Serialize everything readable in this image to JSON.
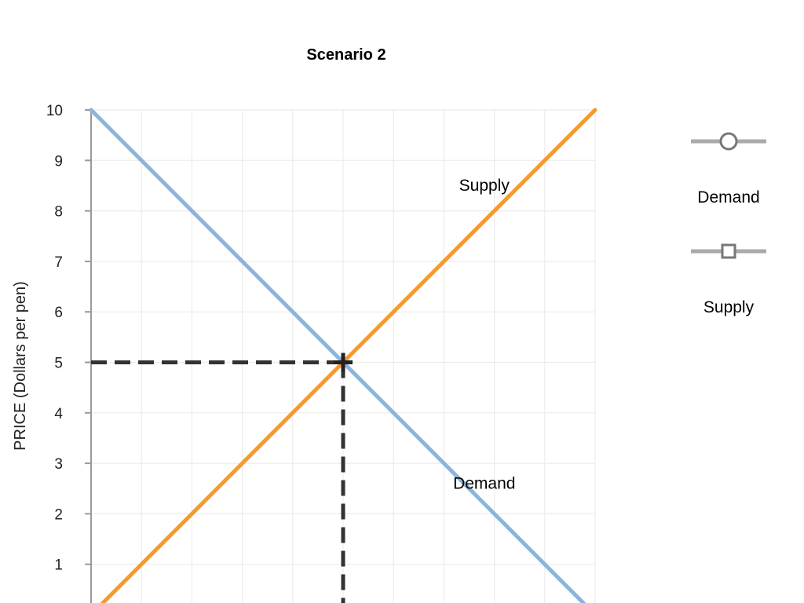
{
  "chart_data": {
    "type": "line",
    "title": "Scenario 2",
    "ylabel": "PRICE (Dollars per pen)",
    "xlabel": "",
    "ylim": [
      0,
      10
    ],
    "xlim": [
      0,
      10
    ],
    "yticks": [
      0,
      1,
      2,
      3,
      4,
      5,
      6,
      7,
      8,
      9,
      10
    ],
    "ytick_labels": [
      "1",
      "2",
      "3",
      "4",
      "5",
      "6",
      "7",
      "8",
      "9",
      "10"
    ],
    "ytick_label_values": [
      1,
      2,
      3,
      4,
      5,
      6,
      7,
      8,
      9,
      10
    ],
    "xgrid": [
      0,
      1,
      2,
      3,
      4,
      5,
      6,
      7,
      8,
      9,
      10
    ],
    "grid": true,
    "series": [
      {
        "name": "Demand",
        "color": "#8cb4dc",
        "marker": "circle",
        "points": [
          [
            0,
            10
          ],
          [
            10,
            0
          ]
        ],
        "label": "Demand",
        "label_at": [
          7.8,
          2.5
        ]
      },
      {
        "name": "Supply",
        "color": "#f59a2d",
        "marker": "square",
        "points": [
          [
            0,
            0
          ],
          [
            10,
            10
          ]
        ],
        "label": "Supply",
        "label_at": [
          7.8,
          8.4
        ]
      }
    ],
    "equilibrium": {
      "x": 5,
      "y": 5,
      "dash_color": "#333333",
      "marker": "cross"
    },
    "legend": {
      "placement": "right",
      "entries": [
        {
          "label": "Demand",
          "marker": "circle"
        },
        {
          "label": "Supply",
          "marker": "square"
        }
      ]
    }
  }
}
